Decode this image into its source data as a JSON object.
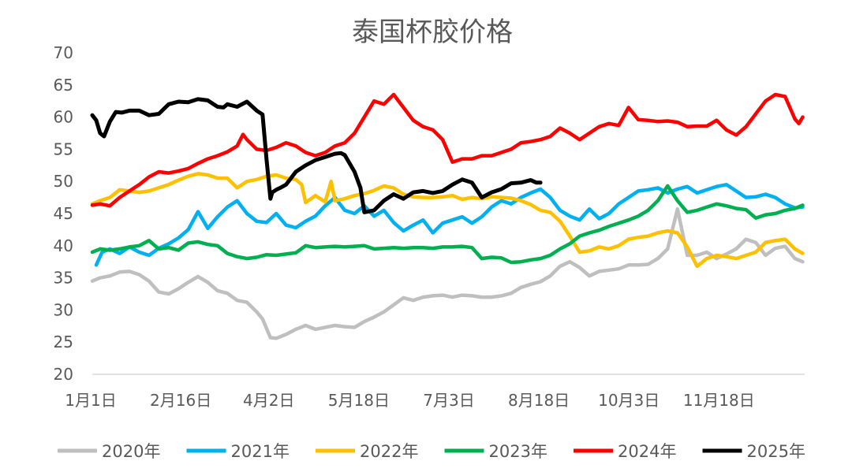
{
  "chart_data": {
    "type": "line",
    "title": "泰国杯胶价格",
    "ylim": [
      20,
      70
    ],
    "y_ticks": [
      20,
      25,
      30,
      35,
      40,
      45,
      50,
      55,
      60,
      65,
      70
    ],
    "x_unit": "day_of_year",
    "x_range": [
      1,
      365
    ],
    "x_ticks": [
      {
        "label": "1月1日",
        "x": 1
      },
      {
        "label": "2月16日",
        "x": 47
      },
      {
        "label": "4月2日",
        "x": 92
      },
      {
        "label": "5月18日",
        "x": 138
      },
      {
        "label": "7月3日",
        "x": 184
      },
      {
        "label": "8月18日",
        "x": 230
      },
      {
        "label": "10月3日",
        "x": 276
      },
      {
        "label": "11月18日",
        "x": 322
      }
    ],
    "grid": false,
    "legend": "bottom",
    "series": [
      {
        "name": "2020年",
        "color": "#BFBFBF",
        "x": [
          1,
          5,
          10,
          15,
          20,
          25,
          30,
          35,
          40,
          45,
          50,
          55,
          60,
          65,
          70,
          75,
          80,
          85,
          88,
          92,
          95,
          100,
          105,
          110,
          115,
          120,
          125,
          130,
          135,
          140,
          145,
          150,
          155,
          160,
          165,
          170,
          175,
          180,
          185,
          190,
          195,
          200,
          205,
          210,
          215,
          220,
          225,
          230,
          235,
          240,
          245,
          250,
          255,
          260,
          265,
          270,
          275,
          280,
          285,
          290,
          295,
          300,
          305,
          310,
          315,
          320,
          325,
          330,
          335,
          340,
          345,
          350,
          355,
          360,
          364
        ],
        "y": [
          34.5,
          35,
          35.3,
          35.9,
          36,
          35.5,
          34.5,
          32.8,
          32.5,
          33.3,
          34.3,
          35.2,
          34.3,
          33,
          32.6,
          31.5,
          31.2,
          29.7,
          28.6,
          25.7,
          25.6,
          26.2,
          27,
          27.6,
          27,
          27.3,
          27.6,
          27.4,
          27.3,
          28.2,
          28.9,
          29.7,
          30.8,
          31.9,
          31.5,
          32,
          32.2,
          32.3,
          32,
          32.3,
          32.2,
          32,
          32,
          32.2,
          32.6,
          33.5,
          34,
          34.4,
          35.3,
          36.8,
          37.5,
          36.6,
          35.3,
          36,
          36.2,
          36.4,
          37,
          37,
          37.1,
          38,
          39.5,
          45.7,
          38.5,
          38.5,
          39,
          38,
          38.7,
          39.5,
          41,
          40.5,
          38.5,
          39.6,
          39.9,
          38,
          37.5
        ]
      },
      {
        "name": "2021年",
        "color": "#00B0F0",
        "x": [
          3,
          6,
          10,
          15,
          20,
          25,
          30,
          35,
          40,
          45,
          50,
          55,
          60,
          65,
          70,
          75,
          80,
          85,
          90,
          95,
          100,
          105,
          110,
          115,
          120,
          125,
          130,
          135,
          140,
          145,
          150,
          155,
          160,
          165,
          170,
          175,
          180,
          185,
          190,
          195,
          200,
          205,
          210,
          215,
          220,
          225,
          230,
          235,
          240,
          245,
          250,
          255,
          260,
          265,
          270,
          275,
          280,
          285,
          290,
          295,
          300,
          305,
          310,
          315,
          320,
          325,
          330,
          335,
          340,
          345,
          350,
          355,
          360,
          364
        ],
        "y": [
          37,
          39,
          39.5,
          38.8,
          39.8,
          39,
          38.5,
          39.6,
          40.3,
          41.2,
          42.5,
          45.3,
          42.7,
          44.5,
          46,
          47,
          45,
          43.8,
          43.6,
          45,
          43.2,
          42.8,
          43.8,
          44.6,
          46.2,
          47.5,
          45.5,
          45,
          46.2,
          44.6,
          45.5,
          43.6,
          42.3,
          43.2,
          44,
          42,
          43.5,
          44,
          44.5,
          43.5,
          44.5,
          46,
          47,
          46.5,
          47.5,
          48.2,
          48.8,
          47.5,
          45.5,
          44.6,
          44,
          45.7,
          44.2,
          45,
          46.5,
          47.5,
          48.5,
          48.7,
          49,
          48.2,
          48.8,
          49.2,
          48.2,
          48.7,
          49.2,
          49.5,
          48.5,
          47.5,
          47.6,
          48,
          47.5,
          46.5,
          45.9,
          46
        ]
      },
      {
        "name": "2022年",
        "color": "#FFC000",
        "x": [
          1,
          5,
          10,
          15,
          20,
          25,
          30,
          35,
          40,
          45,
          50,
          55,
          60,
          65,
          70,
          75,
          80,
          85,
          90,
          95,
          100,
          105,
          108,
          110,
          115,
          120,
          123,
          125,
          130,
          135,
          140,
          145,
          150,
          155,
          160,
          165,
          170,
          175,
          180,
          185,
          190,
          195,
          200,
          205,
          210,
          215,
          220,
          225,
          230,
          235,
          240,
          245,
          250,
          255,
          260,
          265,
          270,
          275,
          280,
          285,
          290,
          295,
          300,
          305,
          310,
          315,
          320,
          325,
          330,
          335,
          340,
          345,
          350,
          355,
          360,
          364
        ],
        "y": [
          46.5,
          47,
          47.5,
          48.7,
          48.5,
          48.3,
          48.5,
          49,
          49.5,
          50.2,
          50.8,
          51.2,
          51,
          50.5,
          50.5,
          49,
          50,
          50.3,
          50.8,
          51,
          50.5,
          50.3,
          49.5,
          46.7,
          47.8,
          46.8,
          50,
          47,
          47.3,
          47.8,
          48.1,
          48.6,
          49.3,
          49,
          48,
          47.6,
          47.5,
          47.5,
          47.6,
          47.8,
          47.2,
          47.5,
          47.3,
          47.6,
          47.5,
          47.4,
          47,
          46.4,
          45.5,
          45.2,
          43.8,
          41.5,
          39,
          39.2,
          39.8,
          39.5,
          40,
          41,
          41.3,
          41.5,
          42,
          42.3,
          42,
          39.8,
          36.8,
          38,
          38.5,
          38.3,
          38,
          38.5,
          39,
          40.5,
          40.8,
          41,
          39.5,
          38.8
        ]
      },
      {
        "name": "2023年",
        "color": "#00B050",
        "x": [
          1,
          5,
          10,
          15,
          20,
          25,
          30,
          35,
          40,
          45,
          50,
          55,
          60,
          65,
          70,
          75,
          80,
          85,
          90,
          95,
          100,
          105,
          110,
          115,
          120,
          125,
          130,
          135,
          140,
          145,
          150,
          155,
          160,
          165,
          170,
          175,
          180,
          185,
          190,
          195,
          200,
          205,
          210,
          215,
          220,
          225,
          230,
          235,
          240,
          245,
          250,
          255,
          260,
          265,
          270,
          275,
          280,
          285,
          290,
          295,
          300,
          305,
          310,
          315,
          320,
          325,
          330,
          335,
          340,
          345,
          350,
          355,
          360,
          364
        ],
        "y": [
          39,
          39.5,
          39.3,
          39.5,
          39.8,
          40,
          40.8,
          39.5,
          39.7,
          39.3,
          40.4,
          40.6,
          40.2,
          40,
          38.8,
          38.3,
          38,
          38.2,
          38.6,
          38.5,
          38.7,
          38.9,
          40,
          39.7,
          39.8,
          39.9,
          39.8,
          39.9,
          40,
          39.5,
          39.6,
          39.7,
          39.6,
          39.7,
          39.7,
          39.6,
          39.8,
          39.8,
          39.9,
          39.7,
          38,
          38.2,
          38.1,
          37.4,
          37.5,
          37.8,
          38,
          38.5,
          39.5,
          40.3,
          41.5,
          42,
          42.4,
          43,
          43.5,
          44,
          44.6,
          45.5,
          47,
          49.3,
          47,
          45.2,
          45.5,
          46,
          46.5,
          46.2,
          45.8,
          45.6,
          44.3,
          44.8,
          45,
          45.5,
          45.8,
          46.3
        ]
      },
      {
        "name": "2024年",
        "color": "#FF0000",
        "x": [
          1,
          5,
          10,
          15,
          20,
          25,
          30,
          35,
          40,
          45,
          50,
          55,
          60,
          65,
          70,
          75,
          78,
          80,
          85,
          90,
          95,
          100,
          105,
          110,
          115,
          120,
          125,
          130,
          135,
          140,
          145,
          150,
          155,
          160,
          165,
          170,
          175,
          180,
          185,
          190,
          195,
          200,
          205,
          210,
          215,
          220,
          225,
          230,
          235,
          240,
          245,
          250,
          255,
          260,
          265,
          270,
          275,
          280,
          285,
          290,
          295,
          300,
          305,
          310,
          315,
          320,
          325,
          330,
          335,
          340,
          345,
          350,
          355,
          360,
          362,
          364
        ],
        "y": [
          46.3,
          46.5,
          46.2,
          47.5,
          48.5,
          49.5,
          50.7,
          51.5,
          51.3,
          51.6,
          52,
          52.8,
          53.5,
          54,
          54.6,
          55.5,
          57.3,
          56.5,
          55,
          54.8,
          55.3,
          56,
          55.5,
          54.5,
          54,
          54.5,
          55.5,
          56,
          57.5,
          60,
          62.5,
          62,
          63.5,
          61.5,
          59.5,
          58.5,
          58,
          56.5,
          53,
          53.5,
          53.5,
          54,
          54,
          54.5,
          55,
          56,
          56.2,
          56.5,
          57,
          58.3,
          57.5,
          56.5,
          57.5,
          58.5,
          59,
          58.7,
          61.5,
          59.6,
          59.5,
          59.3,
          59.4,
          59.2,
          58.5,
          58.6,
          58.6,
          59.5,
          58,
          57.2,
          58.5,
          60.5,
          62.5,
          63.5,
          63.2,
          59.7,
          59,
          60
        ]
      },
      {
        "name": "2025年",
        "color": "#000000",
        "x": [
          1,
          3,
          5,
          7,
          10,
          13,
          16,
          20,
          25,
          30,
          35,
          40,
          45,
          50,
          55,
          60,
          63,
          65,
          68,
          70,
          75,
          80,
          85,
          88,
          90,
          92,
          93,
          95,
          97,
          100,
          105,
          110,
          115,
          120,
          125,
          128,
          130,
          135,
          138,
          140,
          145,
          150,
          155,
          160,
          165,
          170,
          175,
          180,
          185,
          190,
          195,
          200,
          205,
          210,
          215,
          220,
          225,
          228,
          230
        ],
        "y": [
          60.3,
          59.5,
          57.5,
          57,
          59.3,
          60.8,
          60.7,
          61,
          61,
          60.3,
          60.5,
          62,
          62.4,
          62.3,
          62.8,
          62.6,
          62,
          61.6,
          61.5,
          62,
          61.6,
          62.4,
          61,
          60.4,
          53.5,
          47.3,
          48.3,
          48.7,
          49,
          49.5,
          51.5,
          52.5,
          53.3,
          53.8,
          54.3,
          54.4,
          54.1,
          51.5,
          49,
          45.2,
          45.5,
          47,
          48,
          47.3,
          48.3,
          48.5,
          48.2,
          48.5,
          49.5,
          50.3,
          49.8,
          47.5,
          48.3,
          48.8,
          49.7,
          49.8,
          50.2,
          49.8,
          49.8
        ]
      }
    ]
  }
}
